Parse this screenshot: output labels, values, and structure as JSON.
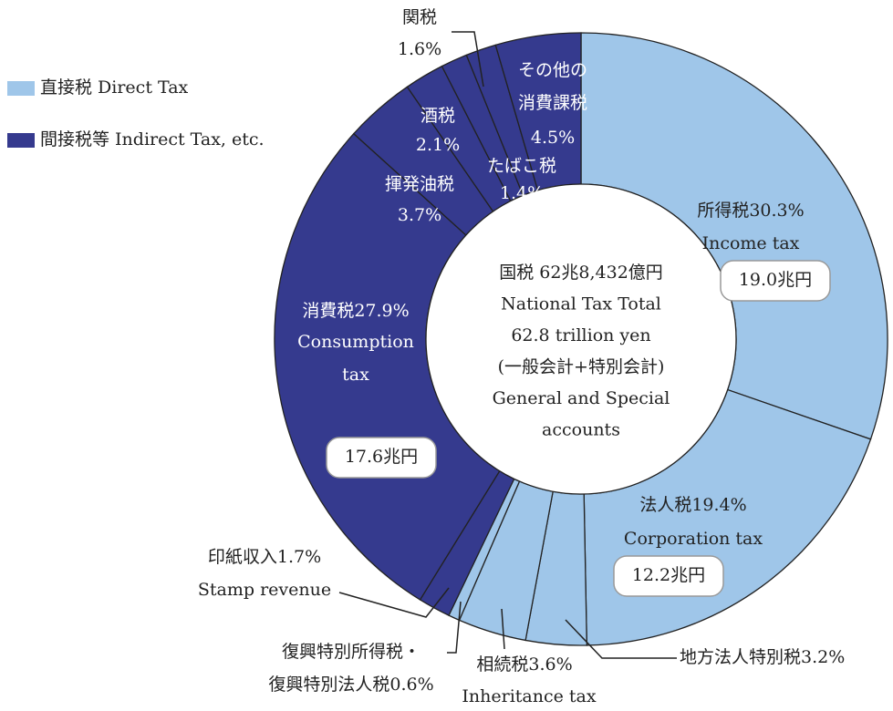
{
  "chart_data": {
    "type": "pie",
    "donut": true,
    "center_text": [
      "国税 62兆8,432億円",
      "National Tax Total",
      "62.8 trillion yen",
      "(一般会計+特別会計)",
      "General and Special",
      "accounts"
    ],
    "legend": [
      {
        "name": "直接税 Direct Tax",
        "color": "#9fc6e9"
      },
      {
        "name": "間接税等 Indirect Tax, etc.",
        "color": "#353a8e"
      }
    ],
    "categories": [
      "所得税",
      "法人税",
      "地方法人特別税",
      "相続税",
      "復興特別所得税・\n復興特別法人税",
      "印紙収入",
      "消費税",
      "揮発油税",
      "酒税",
      "たばこ税",
      "関税",
      "その他の\n消費課税"
    ],
    "categories_en": [
      "Income tax",
      "Corporation tax",
      null,
      "Inheritance tax",
      null,
      "Stamp revenue",
      "Consumption\ntax",
      null,
      null,
      null,
      null,
      null
    ],
    "values": [
      30.3,
      19.4,
      3.2,
      3.6,
      0.6,
      1.7,
      27.9,
      3.7,
      2.1,
      1.4,
      1.6,
      4.5
    ],
    "value_labels": [
      "30.3%",
      "19.4%",
      "3.2%",
      "3.6%",
      "0.6%",
      "1.7%",
      "27.9%",
      "3.7%",
      "2.1%",
      "1.4%",
      "1.6%",
      "4.5%"
    ],
    "amounts": [
      "19.0兆円",
      "12.2兆円",
      null,
      null,
      null,
      null,
      "17.6兆円",
      null,
      null,
      null,
      null,
      null
    ],
    "colors": [
      "#9fc6e9",
      "#9fc6e9",
      "#9fc6e9",
      "#9fc6e9",
      "#9fc6e9",
      "#353a8e",
      "#353a8e",
      "#353a8e",
      "#353a8e",
      "#353a8e",
      "#353a8e",
      "#353a8e"
    ]
  }
}
